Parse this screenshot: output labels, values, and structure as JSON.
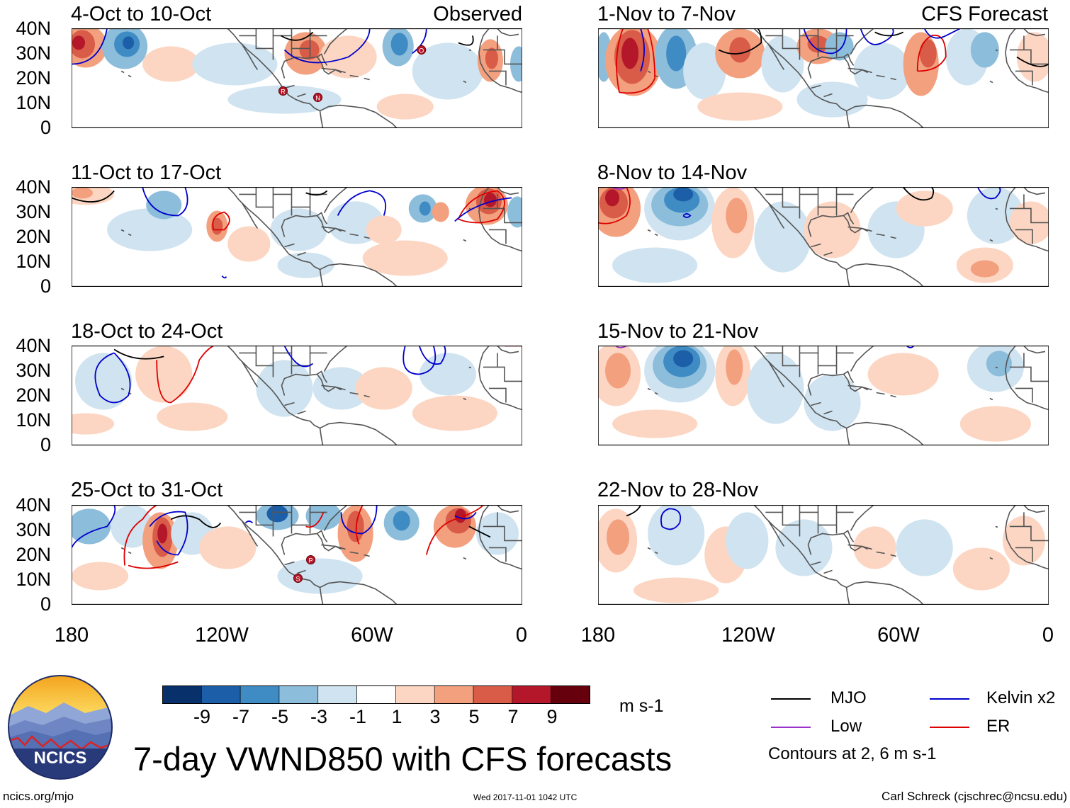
{
  "left_column_tag": "Observed",
  "right_column_tag": "CFS Forecast",
  "panels_left": [
    {
      "title": "4-Oct to 10-Oct"
    },
    {
      "title": "11-Oct to 17-Oct"
    },
    {
      "title": "18-Oct to 24-Oct"
    },
    {
      "title": "25-Oct to 31-Oct"
    }
  ],
  "panels_right": [
    {
      "title": "1-Nov to 7-Nov"
    },
    {
      "title": "8-Nov to 14-Nov"
    },
    {
      "title": "15-Nov to 21-Nov"
    },
    {
      "title": "22-Nov to 28-Nov"
    }
  ],
  "y_axis": {
    "labels": [
      "40N",
      "30N",
      "20N",
      "10N",
      "0"
    ]
  },
  "x_axis": {
    "labels": [
      "180",
      "120W",
      "60W",
      "0"
    ]
  },
  "colorbar": {
    "colors": [
      "#08306b",
      "#1c5fa8",
      "#3f8bc4",
      "#8cbddb",
      "#cfe3f0",
      "#ffffff",
      "#fcd6c2",
      "#f3a07f",
      "#d95c48",
      "#b5172a",
      "#67000d"
    ],
    "labels": [
      "-9",
      "-7",
      "-5",
      "-3",
      "-1",
      "1",
      "3",
      "5",
      "7",
      "9"
    ],
    "unit": "m s-1"
  },
  "legend": {
    "items": [
      {
        "label": "MJO",
        "color": "#000000"
      },
      {
        "label": "Kelvin x2",
        "color": "#0000cc"
      },
      {
        "label": "Low",
        "color": "#9933cc"
      },
      {
        "label": "ER",
        "color": "#dd0000"
      }
    ],
    "note": "Contours at 2, 6 m s-1"
  },
  "logo_text": "NCICS",
  "main_title": "7-day VWND850 with CFS forecasts",
  "footer_left": "ncics.org/mjo",
  "footer_center": "Wed 2017-11-01 1042 UTC",
  "footer_right": "Carl Schreck (cjschrec@ncsu.edu)",
  "storm_markers_panel1": [
    "R",
    "N",
    "O"
  ],
  "storm_markers_panel4": [
    "P",
    "S"
  ]
}
